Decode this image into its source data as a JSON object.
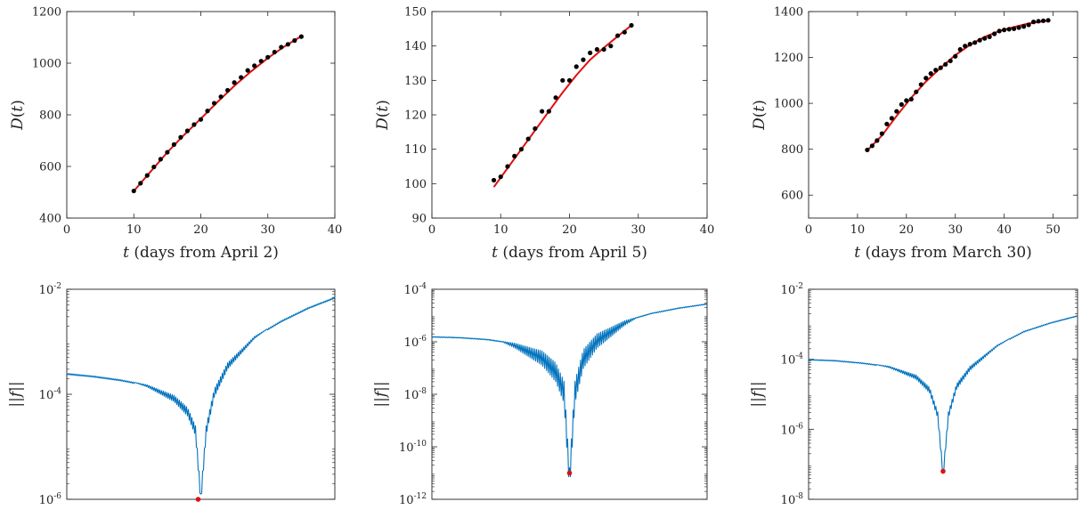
{
  "colors": {
    "fit_line": "#e01010",
    "data_points": "#000000",
    "residual_line": "#0072bd",
    "min_marker": "#e01010",
    "axes": "#222222"
  },
  "chart_data": [
    {
      "type": "scatter",
      "panel": "top-left",
      "ylabel_var": "D",
      "ylabel_arg": "t",
      "xlabel_var": "t",
      "xlabel_rest": "(days from April 2)",
      "xlim": [
        0,
        40
      ],
      "ylim": [
        400,
        1200
      ],
      "xticks": [
        "0",
        "10",
        "20",
        "30",
        "40"
      ],
      "yticks": [
        "400",
        "600",
        "800",
        "1000",
        "1200"
      ],
      "series": [
        {
          "kind": "points",
          "x": [
            10,
            11,
            12,
            13,
            14,
            15,
            16,
            17,
            18,
            19,
            20,
            21,
            22,
            23,
            24,
            25,
            26,
            27,
            28,
            29,
            30,
            31,
            32,
            33,
            34,
            35
          ],
          "y": [
            505,
            535,
            565,
            598,
            628,
            655,
            685,
            713,
            738,
            762,
            782,
            815,
            845,
            870,
            895,
            925,
            945,
            972,
            990,
            1008,
            1023,
            1043,
            1062,
            1073,
            1088,
            1103
          ]
        },
        {
          "kind": "fit-line",
          "x": [
            10,
            12.5,
            15,
            17.5,
            20,
            22.5,
            25,
            27.5,
            30,
            32.5,
            35
          ],
          "y": [
            505,
            580,
            655,
            722,
            785,
            850,
            912,
            968,
            1020,
            1065,
            1105
          ]
        }
      ]
    },
    {
      "type": "scatter",
      "panel": "top-middle",
      "ylabel_var": "D",
      "ylabel_arg": "t",
      "xlabel_var": "t",
      "xlabel_rest": "(days from April 5)",
      "xlim": [
        0,
        40
      ],
      "ylim": [
        90,
        150
      ],
      "xticks": [
        "0",
        "10",
        "20",
        "30",
        "40"
      ],
      "yticks": [
        "90",
        "100",
        "110",
        "120",
        "130",
        "140",
        "150"
      ],
      "series": [
        {
          "kind": "points",
          "x": [
            9,
            10,
            11,
            12,
            13,
            14,
            15,
            16,
            17,
            18,
            19,
            20,
            21,
            22,
            23,
            24,
            25,
            26,
            27,
            28,
            29
          ],
          "y": [
            101,
            102,
            105,
            108,
            110,
            113,
            116,
            121,
            121,
            125,
            130,
            130,
            134,
            136,
            138,
            139,
            139,
            140,
            143,
            144,
            146
          ]
        },
        {
          "kind": "fit-line",
          "x": [
            9,
            11,
            13,
            15,
            17,
            19,
            21,
            23,
            25,
            27,
            29
          ],
          "y": [
            99,
            104.5,
            110,
            115.5,
            121,
            126.5,
            131.5,
            136,
            139.5,
            142.8,
            146
          ]
        }
      ]
    },
    {
      "type": "scatter",
      "panel": "top-right",
      "ylabel_var": "D",
      "ylabel_arg": "t",
      "xlabel_var": "t",
      "xlabel_rest": "(days from March 30)",
      "xlim": [
        0,
        55
      ],
      "ylim": [
        500,
        1400
      ],
      "xticks": [
        "0",
        "10",
        "20",
        "30",
        "40",
        "50"
      ],
      "yticks": [
        "600",
        "800",
        "1000",
        "1200",
        "1400"
      ],
      "series": [
        {
          "kind": "points",
          "x": [
            12,
            13,
            14,
            15,
            16,
            17,
            18,
            19,
            20,
            21,
            22,
            23,
            24,
            25,
            26,
            27,
            28,
            29,
            30,
            31,
            32,
            33,
            34,
            35,
            36,
            37,
            38,
            39,
            40,
            41,
            42,
            43,
            44,
            45,
            46,
            47,
            48,
            49
          ],
          "y": [
            797,
            815,
            838,
            868,
            910,
            935,
            965,
            995,
            1012,
            1018,
            1050,
            1082,
            1110,
            1130,
            1145,
            1155,
            1170,
            1185,
            1205,
            1235,
            1250,
            1258,
            1265,
            1275,
            1283,
            1290,
            1303,
            1315,
            1320,
            1323,
            1325,
            1330,
            1335,
            1342,
            1355,
            1358,
            1360,
            1362
          ]
        },
        {
          "kind": "fit-line",
          "x": [
            12,
            15,
            18,
            21,
            24,
            27,
            30,
            33,
            36,
            39,
            42,
            45,
            49
          ],
          "y": [
            795,
            860,
            945,
            1025,
            1095,
            1155,
            1210,
            1255,
            1290,
            1315,
            1333,
            1348,
            1360
          ]
        }
      ]
    },
    {
      "type": "line",
      "panel": "bottom-left",
      "scale": "log",
      "ylabel": "||f||",
      "ylim_exp": [
        -6,
        -2
      ],
      "yticks_exp": [
        "-6",
        "-4",
        "-2"
      ],
      "ytick_base": "10",
      "xlim": [
        0,
        1
      ],
      "series": [
        {
          "kind": "residual-line",
          "x": [
            0,
            0.1,
            0.2,
            0.3,
            0.4,
            0.45,
            0.48,
            0.5,
            0.52,
            0.55,
            0.6,
            0.7,
            0.8,
            0.9,
            1.0
          ],
          "y_exp": [
            -3.6,
            -3.65,
            -3.72,
            -3.82,
            -4.02,
            -4.25,
            -4.6,
            -5.9,
            -4.6,
            -3.9,
            -3.4,
            -2.9,
            -2.6,
            -2.35,
            -2.15
          ]
        },
        {
          "kind": "minimum",
          "x": 0.49,
          "y_exp": -6
        }
      ]
    },
    {
      "type": "line",
      "panel": "bottom-middle",
      "scale": "log",
      "ylabel": "||f||",
      "ylim_exp": [
        -12,
        -4
      ],
      "yticks_exp": [
        "-12",
        "-10",
        "-8",
        "-6",
        "-4"
      ],
      "ytick_base": "10",
      "xlim": [
        0,
        1
      ],
      "series": [
        {
          "kind": "residual-line",
          "x": [
            0,
            0.1,
            0.2,
            0.3,
            0.4,
            0.45,
            0.48,
            0.5,
            0.52,
            0.55,
            0.6,
            0.7,
            0.8,
            0.9,
            1.0
          ],
          "y_exp": [
            -5.8,
            -5.83,
            -5.9,
            -6.05,
            -6.35,
            -6.8,
            -7.5,
            -10.8,
            -7.5,
            -6.3,
            -5.7,
            -5.2,
            -4.9,
            -4.7,
            -4.55
          ]
        },
        {
          "kind": "minimum",
          "x": 0.5,
          "y_exp": -11
        }
      ]
    },
    {
      "type": "line",
      "panel": "bottom-right",
      "scale": "log",
      "ylabel": "||f||",
      "ylim_exp": [
        -8,
        -2
      ],
      "yticks_exp": [
        "-8",
        "-6",
        "-4",
        "-2"
      ],
      "ytick_base": "10",
      "xlim": [
        0,
        1
      ],
      "series": [
        {
          "kind": "residual-line",
          "x": [
            0,
            0.1,
            0.2,
            0.3,
            0.4,
            0.45,
            0.48,
            0.5,
            0.52,
            0.55,
            0.6,
            0.7,
            0.8,
            0.9,
            1.0
          ],
          "y_exp": [
            -4.0,
            -4.03,
            -4.1,
            -4.2,
            -4.45,
            -4.8,
            -5.5,
            -7.2,
            -5.5,
            -4.7,
            -4.2,
            -3.6,
            -3.2,
            -2.95,
            -2.75
          ]
        },
        {
          "kind": "minimum",
          "x": 0.5,
          "y_exp": -7.2
        }
      ]
    }
  ]
}
